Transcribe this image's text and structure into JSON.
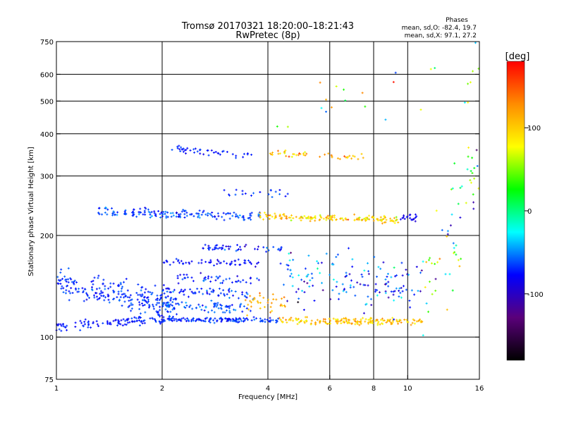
{
  "chart_data": {
    "type": "scatter",
    "title": "Tromsø 20170321 18:20:00–18:21:43",
    "subtitle": "RwPretec (8p)",
    "phase_box": {
      "heading": "Phases",
      "line_o": "mean, sd,O: -82.4, 19.7",
      "line_x": "mean, sd,X:  97.1, 27.2"
    },
    "xlabel": "Frequency [MHz]",
    "ylabel": "Stationary phase Virtual Height [km]",
    "x_scale": "log",
    "y_scale": "log",
    "xlim": [
      1,
      16
    ],
    "ylim": [
      75,
      750
    ],
    "x_ticks": [
      {
        "value": 1,
        "label": "1"
      },
      {
        "value": 2,
        "label": "2"
      },
      {
        "value": 4,
        "label": "4"
      },
      {
        "value": 6,
        "label": "6"
      },
      {
        "value": 8,
        "label": "8"
      },
      {
        "value": 10,
        "label": "10"
      },
      {
        "value": 16,
        "label": "16"
      }
    ],
    "x_gridlines": [
      2,
      4,
      6,
      8,
      10
    ],
    "y_ticks": [
      {
        "value": 75,
        "label": "75"
      },
      {
        "value": 100,
        "label": "100"
      },
      {
        "value": 200,
        "label": "200"
      },
      {
        "value": 300,
        "label": "300"
      },
      {
        "value": 400,
        "label": "400"
      },
      {
        "value": 500,
        "label": "500"
      },
      {
        "value": 600,
        "label": "600"
      },
      {
        "value": 750,
        "label": "750"
      }
    ],
    "y_gridlines": [
      100,
      200,
      300,
      400,
      500,
      600
    ],
    "colorbar": {
      "label": "[deg]",
      "range": [
        -180,
        180
      ],
      "ticks": [
        {
          "value": 100,
          "label": "100"
        },
        {
          "value": 0,
          "label": "0"
        },
        {
          "value": -100,
          "label": "-100"
        }
      ],
      "stops": [
        "#ff0000",
        "#ff8c00",
        "#ffff00",
        "#00ff00",
        "#00ffff",
        "#0000ff",
        "#5a007a",
        "#000000"
      ]
    },
    "traces": [
      {
        "f_start": 1.0,
        "f_end": 2.05,
        "h_start": 107,
        "h_end": 113,
        "scatter": 0.03,
        "n": 110,
        "phase": -100,
        "phase_sd": 12
      },
      {
        "f_start": 2.05,
        "f_end": 4.3,
        "h_start": 113,
        "h_end": 112,
        "scatter": 0.015,
        "n": 130,
        "phase": -95,
        "phase_sd": 15
      },
      {
        "f_start": 4.3,
        "f_end": 11.0,
        "h_start": 112,
        "h_end": 111,
        "scatter": 0.02,
        "n": 170,
        "phase": 100,
        "phase_sd": 30
      },
      {
        "f_start": 1.0,
        "f_end": 2.2,
        "h_start": 145,
        "h_end": 125,
        "scatter": 0.08,
        "n": 240,
        "phase": -95,
        "phase_sd": 15
      },
      {
        "f_start": 2.0,
        "f_end": 3.6,
        "h_start": 125,
        "h_end": 122,
        "scatter": 0.03,
        "n": 70,
        "phase": -85,
        "phase_sd": 20
      },
      {
        "f_start": 2.0,
        "f_end": 3.7,
        "h_start": 138,
        "h_end": 134,
        "scatter": 0.03,
        "n": 60,
        "phase": -95,
        "phase_sd": 18
      },
      {
        "f_start": 2.0,
        "f_end": 3.8,
        "h_start": 168,
        "h_end": 166,
        "scatter": 0.02,
        "n": 55,
        "phase": -105,
        "phase_sd": 12
      },
      {
        "f_start": 2.6,
        "f_end": 4.4,
        "h_start": 185,
        "h_end": 182,
        "scatter": 0.02,
        "n": 50,
        "phase": -100,
        "phase_sd": 20
      },
      {
        "f_start": 2.2,
        "f_end": 3.8,
        "h_start": 150,
        "h_end": 148,
        "scatter": 0.03,
        "n": 45,
        "phase": -100,
        "phase_sd": 20
      },
      {
        "f_start": 1.3,
        "f_end": 3.8,
        "h_start": 235,
        "h_end": 228,
        "scatter": 0.025,
        "n": 160,
        "phase": -90,
        "phase_sd": 20
      },
      {
        "f_start": 3.8,
        "f_end": 9.5,
        "h_start": 228,
        "h_end": 222,
        "scatter": 0.02,
        "n": 150,
        "phase": 95,
        "phase_sd": 40
      },
      {
        "f_start": 9.5,
        "f_end": 10.7,
        "h_start": 225,
        "h_end": 226,
        "scatter": 0.02,
        "n": 20,
        "phase": -110,
        "phase_sd": 10
      },
      {
        "f_start": 2.1,
        "f_end": 3.6,
        "h_start": 362,
        "h_end": 345,
        "scatter": 0.02,
        "n": 45,
        "phase": -100,
        "phase_sd": 12
      },
      {
        "f_start": 4.0,
        "f_end": 7.5,
        "h_start": 350,
        "h_end": 340,
        "scatter": 0.02,
        "n": 45,
        "phase": 105,
        "phase_sd": 40
      },
      {
        "f_start": 3.0,
        "f_end": 4.6,
        "h_start": 265,
        "h_end": 265,
        "scatter": 0.03,
        "n": 20,
        "phase": -95,
        "phase_sd": 20
      },
      {
        "f_start": 4.3,
        "f_end": 11.0,
        "h_start": 150,
        "h_end": 140,
        "scatter": 0.15,
        "n": 150,
        "phase": -90,
        "phase_sd": 60
      },
      {
        "f_start": 3.4,
        "f_end": 4.5,
        "h_start": 125,
        "h_end": 128,
        "scatter": 0.05,
        "n": 35,
        "phase": 110,
        "phase_sd": 25
      },
      {
        "f_start": 11.0,
        "f_end": 16.0,
        "h_start": 130,
        "h_end": 320,
        "scatter": 0.35,
        "n": 60,
        "phase": 0,
        "phase_sd": 120
      },
      {
        "f_start": 4.0,
        "f_end": 16.0,
        "h_start": 400,
        "h_end": 650,
        "scatter": 0.2,
        "n": 25,
        "phase": 20,
        "phase_sd": 120
      }
    ]
  }
}
